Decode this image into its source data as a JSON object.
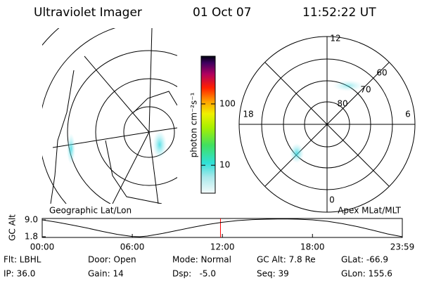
{
  "header": {
    "title": "Ultraviolet Imager",
    "date": "01 Oct 07",
    "time": "11:52:22 UT"
  },
  "left_panel": {
    "caption": "Geographic Lat/Lon"
  },
  "colorbar": {
    "label": "photon cm⁻²s⁻¹",
    "clim": [
      3.5,
      600
    ],
    "log": true,
    "ticks": [
      10,
      100
    ]
  },
  "right_panel": {
    "caption": "Apex MLat/MLT",
    "mlt_labels": [
      "12",
      "6",
      "0",
      "18"
    ],
    "mlat_labels": [
      "60",
      "70",
      "80"
    ]
  },
  "altitude_plot": {
    "ylabel": "GC Alt",
    "ylim": [
      1.5,
      9.6
    ],
    "yticks": [
      {
        "value": 9.0,
        "label": "9.0"
      },
      {
        "value": 1.8,
        "label": "1.8"
      }
    ],
    "xlim": [
      0,
      23.9833
    ],
    "xticks": [
      {
        "value": 0,
        "label": "00:00"
      },
      {
        "value": 6,
        "label": "06:00"
      },
      {
        "value": 12,
        "label": "12:00"
      },
      {
        "value": 18,
        "label": "18:00"
      },
      {
        "value": 23.9833,
        "label": "23:59"
      }
    ],
    "x": [
      0,
      1,
      2,
      3,
      4,
      5,
      6,
      6.5,
      7,
      8,
      9,
      10,
      11,
      12,
      13,
      14,
      15,
      16,
      17,
      18,
      19,
      20,
      21,
      22,
      23,
      23.9833
    ],
    "values": [
      9.0,
      8.0,
      6.8,
      5.5,
      4.1,
      2.8,
      1.9,
      1.8,
      2.1,
      3.2,
      4.5,
      5.8,
      7.0,
      8.0,
      8.7,
      9.1,
      9.3,
      9.4,
      9.3,
      9.0,
      8.4,
      7.4,
      6.1,
      4.6,
      3.0,
      1.8
    ],
    "color": "#000000",
    "marker_x": 11.873,
    "marker_color": "#ff0000"
  },
  "info": [
    [
      "Flt: LBHL",
      "IP: 36.0"
    ],
    [
      "Door: Open",
      "Gain: 14"
    ],
    [
      "Mode: Normal",
      "Dsp:   -5.0"
    ],
    [
      "GC Alt: 7.8 Re",
      "Seq: 39"
    ],
    [
      "GLat: -66.9",
      "GLon: 155.6"
    ]
  ]
}
